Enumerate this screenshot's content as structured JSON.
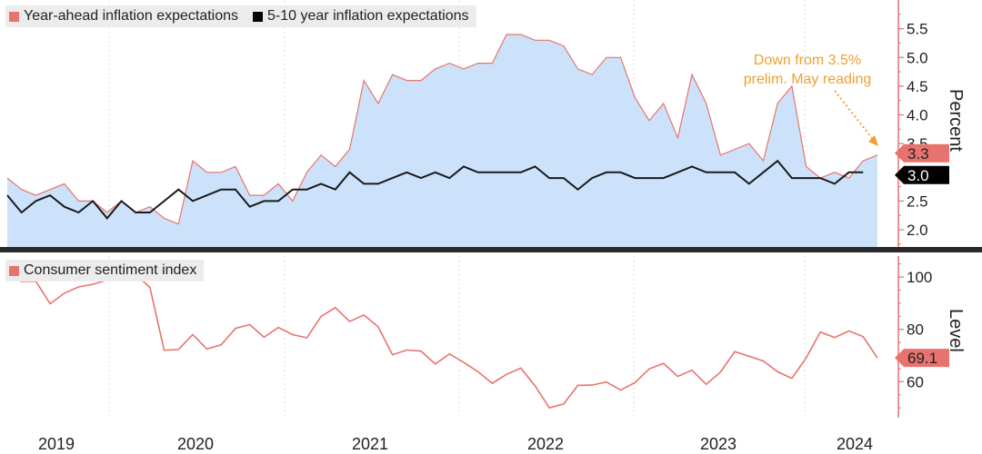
{
  "legend_top": {
    "items": [
      {
        "label": "Year-ahead inflation expectations",
        "color": "#e8736e"
      },
      {
        "label": "5-10 year inflation expectations",
        "color": "#000000"
      }
    ]
  },
  "legend_bottom": {
    "items": [
      {
        "label": "Consumer sentiment index",
        "color": "#e8736e"
      }
    ]
  },
  "annotation": {
    "line1": "Down from 3.5%",
    "line2": "prelim. May reading"
  },
  "colors": {
    "area_fill": "#cce2fb",
    "area_line": "#e8736e",
    "long_line": "#1a1a1a",
    "sentiment_line": "#e8736e",
    "axis": "#e8736e",
    "divider": "#2a2a2a"
  },
  "chart_data": [
    {
      "type": "area",
      "panel": "top",
      "ylabel": "Percent",
      "ylim": [
        1.7,
        6.0
      ],
      "yticks": [
        "2.0",
        "2.5",
        "3.0",
        "3.5",
        "4.0",
        "4.5",
        "5.0",
        "5.5"
      ],
      "x_start": 2018.92,
      "x_step": 0.0833,
      "series": [
        {
          "name": "Year-ahead inflation expectations",
          "style": "area",
          "values": [
            2.9,
            2.7,
            2.6,
            2.7,
            2.8,
            2.5,
            2.5,
            2.3,
            2.5,
            2.3,
            2.4,
            2.2,
            2.1,
            3.2,
            3.0,
            3.0,
            3.1,
            2.6,
            2.6,
            2.8,
            2.5,
            3.0,
            3.3,
            3.1,
            3.4,
            4.6,
            4.2,
            4.7,
            4.6,
            4.6,
            4.8,
            4.9,
            4.8,
            4.9,
            4.9,
            5.4,
            5.4,
            5.3,
            5.3,
            5.2,
            4.8,
            4.7,
            5.0,
            5.0,
            4.3,
            3.9,
            4.2,
            3.6,
            4.7,
            4.2,
            3.3,
            3.4,
            3.5,
            3.2,
            4.2,
            4.5,
            3.1,
            2.9,
            3.0,
            2.9,
            3.2,
            3.3
          ],
          "end_label": "3.3"
        },
        {
          "name": "5-10 year inflation expectations",
          "style": "line",
          "values": [
            2.6,
            2.3,
            2.5,
            2.6,
            2.4,
            2.3,
            2.5,
            2.2,
            2.5,
            2.3,
            2.3,
            2.5,
            2.7,
            2.5,
            2.6,
            2.7,
            2.7,
            2.4,
            2.5,
            2.5,
            2.7,
            2.7,
            2.8,
            2.7,
            3.0,
            2.8,
            2.8,
            2.9,
            3.0,
            2.9,
            3.0,
            2.9,
            3.1,
            3.0,
            3.0,
            3.0,
            3.0,
            3.1,
            2.9,
            2.9,
            2.7,
            2.9,
            3.0,
            3.0,
            2.9,
            2.9,
            2.9,
            3.0,
            3.1,
            3.0,
            3.0,
            3.0,
            2.8,
            3.0,
            3.2,
            2.9,
            2.9,
            2.9,
            2.8,
            3.0,
            3.0
          ],
          "end_label": "3.0"
        }
      ]
    },
    {
      "type": "line",
      "panel": "bottom",
      "ylabel": "Level",
      "ylim": [
        48,
        108
      ],
      "yticks": [
        "60",
        "80",
        "100"
      ],
      "x_start": 2018.92,
      "x_step": 0.0833,
      "series": [
        {
          "name": "Consumer sentiment index",
          "values": [
            100.0,
            98.3,
            98.4,
            89.8,
            93.8,
            96.2,
            97.2,
            98.8,
            100.0,
            101.0,
            96.0,
            72.0,
            72.3,
            78.0,
            72.5,
            74.1,
            80.4,
            81.8,
            77.0,
            80.7,
            78.0,
            76.8,
            84.9,
            88.3,
            83.0,
            85.5,
            81.0,
            70.3,
            72.1,
            71.7,
            66.8,
            70.6,
            67.4,
            63.8,
            59.4,
            62.8,
            65.2,
            58.4,
            50.0,
            51.5,
            58.6,
            58.7,
            59.9,
            56.8,
            59.7,
            64.9,
            67.0,
            62.0,
            64.4,
            59.0,
            63.7,
            71.5,
            69.7,
            67.9,
            63.8,
            61.3,
            69.1,
            79.0,
            76.9,
            79.4,
            77.2,
            69.1
          ],
          "end_label": "69.1"
        }
      ]
    }
  ],
  "x_axis": {
    "labels": [
      {
        "text": "2019",
        "x": 2019.0
      },
      {
        "text": "2020",
        "x": 2020.0
      },
      {
        "text": "2021",
        "x": 2021.0
      },
      {
        "text": "2022",
        "x": 2022.0
      },
      {
        "text": "2023",
        "x": 2023.0
      },
      {
        "text": "2024",
        "x": 2023.8
      }
    ]
  }
}
